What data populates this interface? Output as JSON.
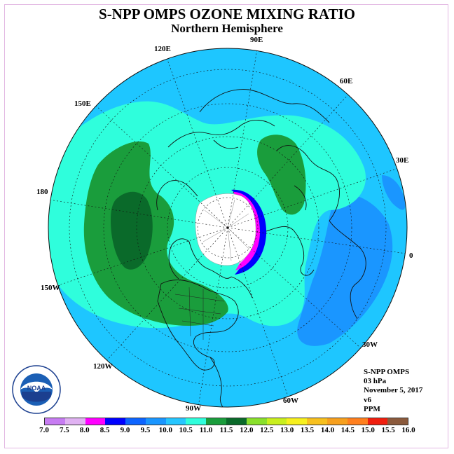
{
  "title": "S-NPP OMPS OZONE MIXING RATIO",
  "subtitle": "Northern Hemisphere",
  "longitude_labels": [
    "90E",
    "60E",
    "30E",
    "0",
    "30W",
    "60W",
    "90W",
    "120W",
    "150W",
    "180",
    "150E",
    "120E"
  ],
  "info": {
    "instrument": "S-NPP OMPS",
    "level": "03 hPa",
    "date": "November 5, 2017",
    "version": "v6",
    "units": "PPM"
  },
  "colorbar": {
    "colors": [
      "#c77cf2",
      "#e0b2f2",
      "#ff00ff",
      "#0000ff",
      "#0d64ff",
      "#1a96ff",
      "#26c6ff",
      "#2ffedc",
      "#1a9d3c",
      "#0a6a2a",
      "#8ae02c",
      "#c9ef1e",
      "#f7f01e",
      "#f7c01e",
      "#f7a01e",
      "#ff7f1e",
      "#f01e0e",
      "#8b5a3c"
    ],
    "ticks": [
      "7.0",
      "7.5",
      "8.0",
      "8.5",
      "9.0",
      "9.5",
      "10.0",
      "10.5",
      "11.0",
      "11.5",
      "12.0",
      "12.5",
      "13.0",
      "13.5",
      "14.0",
      "14.5",
      "15.0",
      "15.5",
      "16.0"
    ]
  },
  "logo": {
    "text": "NOAA",
    "ring_text": "NATIONAL OCEANIC AND ATMOSPHERIC ADMINISTRATION"
  },
  "theme": {
    "ocean_blue": "#1ec6ff",
    "mid_blue": "#1a96ff",
    "aqua": "#2ffedc",
    "green": "#1a9d3c",
    "dark_green": "#0a6a2a",
    "missing": "#ffffff"
  }
}
